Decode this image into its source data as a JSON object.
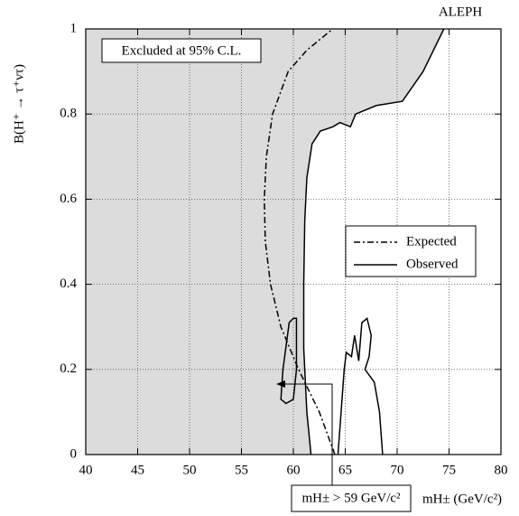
{
  "chart_data": {
    "type": "line",
    "experiment": "ALEPH",
    "region_label": "Excluded at 95% C.L.",
    "annotation": "mH± > 59 GeV/c²",
    "x_label": "mH± (GeV/c²)",
    "y_label": "B(H⁺ → τ⁺ντ)",
    "xlim": [
      40,
      80
    ],
    "xticks": [
      40,
      45,
      50,
      55,
      60,
      65,
      70,
      75,
      80
    ],
    "ylim": [
      0,
      1
    ],
    "yticks": [
      0,
      0.2,
      0.4,
      0.6,
      0.8,
      1
    ],
    "grid": true,
    "region_color": "#dcdcdc",
    "series": [
      {
        "name": "Expected",
        "color": "#000000",
        "dash": "dashdot",
        "x": [
          64.0,
          62.5,
          60.5,
          58.8,
          57.8,
          57.3,
          57.2,
          57.4,
          58.0,
          59.5,
          61.3,
          63.8
        ],
        "values": [
          0,
          0.1,
          0.2,
          0.3,
          0.4,
          0.5,
          0.6,
          0.7,
          0.8,
          0.9,
          0.95,
          1.0
        ]
      },
      {
        "name": "Observed",
        "color": "#000000",
        "dash": "solid",
        "x": [
          61.7,
          61.3,
          61.0,
          61.0,
          61.1,
          61.3,
          61.8,
          62.6,
          63.8,
          64.5,
          65.5,
          66.0,
          68.0,
          70.5,
          72.5,
          74.5,
          null,
          60.0,
          59.6,
          59.0,
          58.8,
          59.3,
          60.0,
          60.3,
          60.3,
          60.0,
          null,
          64.3,
          64.9,
          65.1,
          65.6,
          65.9,
          66.3,
          66.6,
          67.1,
          67.5,
          67.3,
          66.9,
          67.8,
          68.3,
          68.6
        ],
        "values": [
          0,
          0.1,
          0.25,
          0.4,
          0.55,
          0.65,
          0.73,
          0.76,
          0.77,
          0.78,
          0.77,
          0.8,
          0.82,
          0.83,
          0.9,
          1.0,
          null,
          0.32,
          0.31,
          0.2,
          0.13,
          0.12,
          0.13,
          0.2,
          0.32,
          0.32,
          null,
          0,
          0.2,
          0.24,
          0.23,
          0.28,
          0.22,
          0.31,
          0.32,
          0.28,
          0.23,
          0.2,
          0.17,
          0.1,
          0
        ]
      }
    ]
  }
}
